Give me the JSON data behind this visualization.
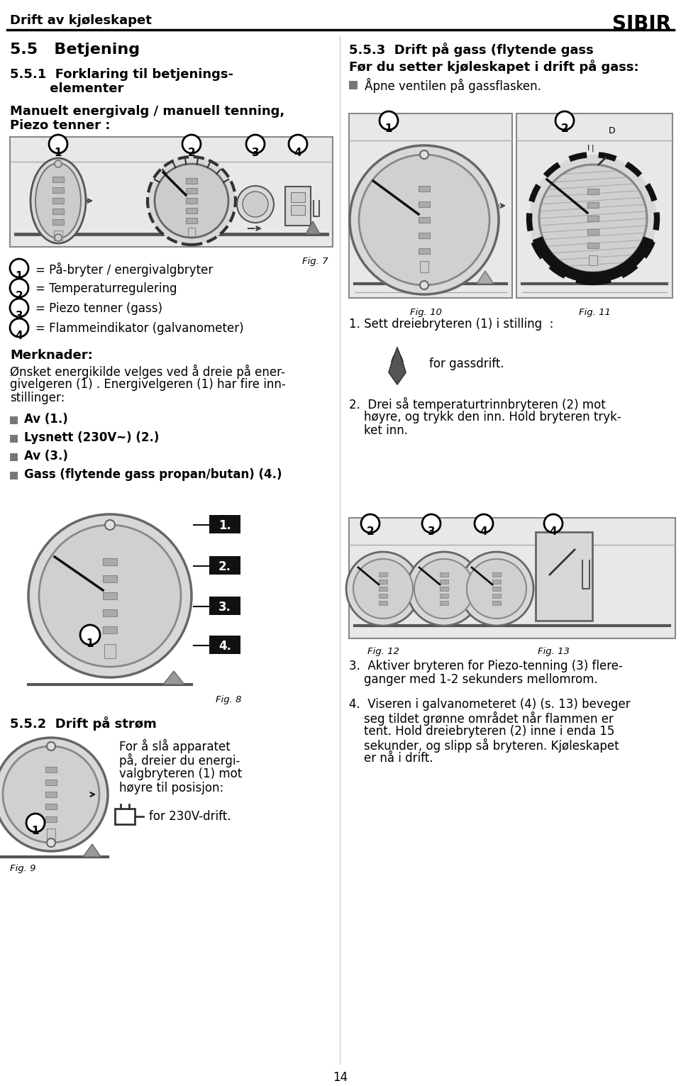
{
  "page_title_left": "Drift av kjøleskapet",
  "page_title_right": "SIBIR",
  "page_number": "14",
  "bg_color": "#ffffff",
  "section_55_title": "5.5   Betjening",
  "section_551_line1": "5.5.1  Forklaring til betjenings-",
  "section_551_line2": "         elementer",
  "section_551_sub1": "Manuelt energivalg / manuell tenning,",
  "section_551_sub2": "Piezo tenner :",
  "legend_items": [
    {
      "num": "1",
      "text": "= På-bryter / energivalgbryter"
    },
    {
      "num": "2",
      "text": "= Temperaturregulering"
    },
    {
      "num": "3",
      "text": "= Piezo tenner (gass)"
    },
    {
      "num": "4",
      "text": "= Flammeindikator (galvanometer)"
    }
  ],
  "fig7_label": "Fig. 7",
  "merknader_title": "Merknader:",
  "merknader_lines": [
    "Ønsket energikilde velges ved å dreie på ener-",
    "givelgeren (1) . Energivelgeren (1) har fire inn-",
    "stillinger:"
  ],
  "bullet_items": [
    "Av (1.)",
    "Lysnett (230V~) (2.)",
    "Av (3.)",
    "Gass (flytende gass propan/butan) (4.)"
  ],
  "fig8_label": "Fig. 8",
  "fig8_positions": [
    "1.",
    "2.",
    "3.",
    "4."
  ],
  "section_552_title": "5.5.2  Drift på strøm",
  "section_552_lines": [
    "For å slå apparatet",
    "på, dreier du energi-",
    "valgbryteren (1) mot",
    "høyre til posisjon:"
  ],
  "section_552_note": "for 230V-drift.",
  "fig9_label": "Fig. 9",
  "section_553_title": "5.5.3  Drift på gass (flytende gass",
  "section_553_intro": "Før du setter kjøleskapet i drift på gass:",
  "section_553_bullet": "Åpne ventilen på gassflasken.",
  "fig10_label": "Fig. 10",
  "fig11_label": "Fig. 11",
  "right_step1_a": "1. Sett dreiebryteren (1) i stilling  :",
  "right_step1_note": "for gassdrift.",
  "right_step2_lines": [
    "2.  Drei så temperaturtrinnbryteren (2) mot",
    "    høyre, og trykk den inn. Hold bryteren tryk-",
    "    ket inn."
  ],
  "fig12_label": "Fig. 12",
  "fig13_label": "Fig. 13",
  "right_step3_lines": [
    "3.  Aktiver bryteren for Piezo-tenning (3) flere-",
    "    ganger med 1-2 sekunders mellomrom."
  ],
  "right_step4_lines": [
    "4.  Viseren i galvanometeret (4) (s. 13) beveger",
    "    seg tildet grønne området når flammen er",
    "    tent. Hold dreiebryteren (2) inne i enda 15",
    "    sekunder, og slipp så bryteren. Kjøleskapet",
    "    er nå i drift."
  ]
}
